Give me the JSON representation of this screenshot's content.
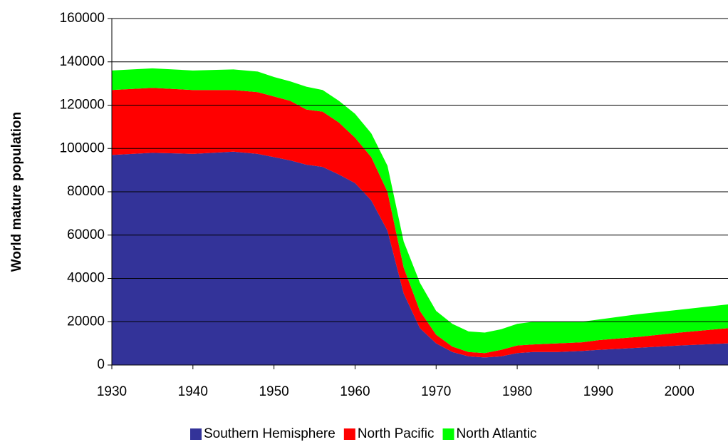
{
  "chart_data": {
    "type": "stacked_area",
    "ylabel": "World mature population",
    "x": [
      1930,
      1935,
      1940,
      1945,
      1948,
      1950,
      1952,
      1954,
      1956,
      1958,
      1960,
      1962,
      1964,
      1966,
      1968,
      1970,
      1972,
      1974,
      1976,
      1978,
      1980,
      1982,
      1985,
      1988,
      1990,
      1995,
      2000,
      2006
    ],
    "series": [
      {
        "name": "Southern Hemisphere",
        "color": "#333399",
        "values": [
          97000,
          98000,
          97500,
          98500,
          97500,
          96000,
          94500,
          92500,
          91500,
          88000,
          84000,
          76000,
          62000,
          33000,
          17000,
          10000,
          6000,
          4000,
          3500,
          4000,
          5500,
          6000,
          6000,
          6500,
          7000,
          8000,
          9000,
          10000
        ]
      },
      {
        "name": "North Pacific",
        "color": "#ff0000",
        "values": [
          30000,
          30000,
          29500,
          28500,
          28500,
          28000,
          27500,
          25500,
          25500,
          24000,
          21000,
          20000,
          18000,
          12000,
          8000,
          4000,
          2500,
          2000,
          2000,
          3000,
          3500,
          3500,
          4000,
          4000,
          4500,
          5000,
          6000,
          7000
        ]
      },
      {
        "name": "North Atlantic",
        "color": "#00ff00",
        "values": [
          9000,
          9000,
          9000,
          9500,
          9500,
          9000,
          9000,
          10500,
          10000,
          10000,
          11000,
          11000,
          12000,
          12000,
          13000,
          11000,
          10500,
          9500,
          9500,
          9500,
          10000,
          10500,
          10000,
          9500,
          9500,
          10500,
          10500,
          11000
        ]
      }
    ],
    "xlim": [
      1930,
      2006
    ],
    "xticks": [
      1930,
      1940,
      1950,
      1960,
      1970,
      1980,
      1990,
      2000
    ],
    "ylim": [
      0,
      160000
    ],
    "yticks": [
      0,
      20000,
      40000,
      60000,
      80000,
      100000,
      120000,
      140000,
      160000
    ],
    "grid": true,
    "legend": "bottom"
  }
}
